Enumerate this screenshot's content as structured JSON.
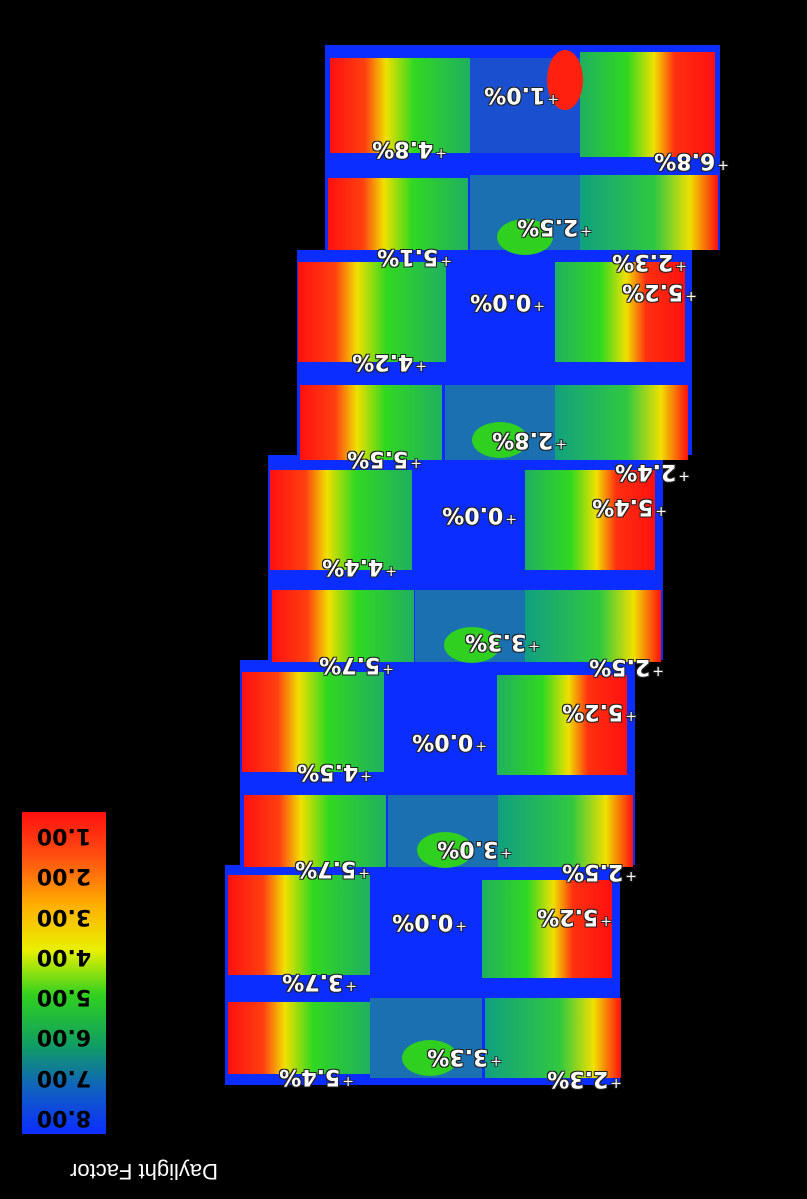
{
  "legend": {
    "title": "Daylight Factor",
    "ticks": [
      "1.00",
      "2.00",
      "3.00",
      "4.00",
      "5.00",
      "6.00",
      "7.00",
      "8.00"
    ]
  },
  "colors": {
    "background": "#000000",
    "low": "#0b2dff",
    "mid_low": "#10a060",
    "mid": "#22d022",
    "mid_high": "#e8f000",
    "high": "#ff8000",
    "max": "#ff1010"
  },
  "rooms": [
    {
      "label": "1.0%"
    },
    {
      "label": "4.8%"
    },
    {
      "label": "6.8%"
    },
    {
      "label": "5.1%"
    },
    {
      "label": "2.5%"
    },
    {
      "label": "2.3%"
    },
    {
      "label": "0.0%"
    },
    {
      "label": "5.2%"
    },
    {
      "label": "4.2%"
    },
    {
      "label": "5.5%"
    },
    {
      "label": "2.8%"
    },
    {
      "label": "2.4%"
    },
    {
      "label": "0.0%"
    },
    {
      "label": "5.4%"
    },
    {
      "label": "4.4%"
    },
    {
      "label": "5.7%"
    },
    {
      "label": "3.3%"
    },
    {
      "label": "2.5%"
    },
    {
      "label": "5.2%"
    },
    {
      "label": "0.0%"
    },
    {
      "label": "4.5%"
    },
    {
      "label": "5.7%"
    },
    {
      "label": "3.0%"
    },
    {
      "label": "2.5%"
    },
    {
      "label": "0.0%"
    },
    {
      "label": "5.2%"
    },
    {
      "label": "3.7%"
    },
    {
      "label": "5.4%"
    },
    {
      "label": "3.3%"
    },
    {
      "label": "2.3%"
    }
  ]
}
